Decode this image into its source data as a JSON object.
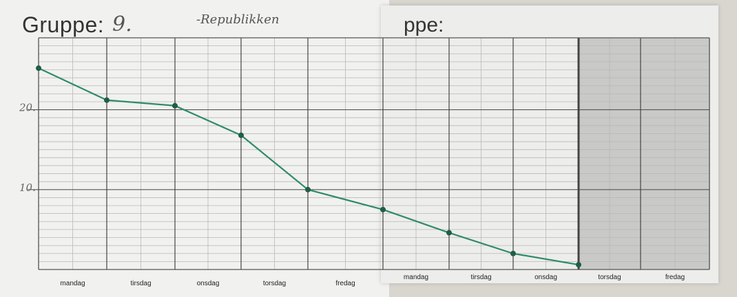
{
  "header": {
    "label": "Gruppe:",
    "group_number": "9.",
    "group_name": "-Republikken",
    "right_label": "ppe:"
  },
  "chart_data": {
    "type": "line",
    "title": "",
    "xlabel": "",
    "ylabel": "",
    "categories": [
      "mandag",
      "tirsdag",
      "onsdag",
      "torsdag",
      "fredag",
      "mandag",
      "tirsdag",
      "onsdag",
      "torsdag",
      "fredag"
    ],
    "ylim": [
      0,
      29
    ],
    "yticks": [
      {
        "value": 10,
        "label": "10."
      },
      {
        "value": 20,
        "label": "20."
      }
    ],
    "series": [
      {
        "name": "",
        "color": "#2e8b6a",
        "points": [
          {
            "x": 0,
            "y": 25.2
          },
          {
            "x": 1,
            "y": 21.2
          },
          {
            "x": 2,
            "y": 20.5
          },
          {
            "x": 3,
            "y": 16.8
          },
          {
            "x": 4,
            "y": 10.0
          },
          {
            "x": 5,
            "y": 7.5
          },
          {
            "x": 6,
            "y": 4.6
          },
          {
            "x": 7,
            "y": 2.0
          },
          {
            "x": 8,
            "y": 0.6
          }
        ]
      }
    ],
    "grid": true,
    "shaded_days": [
      "torsdag",
      "fredag"
    ]
  }
}
